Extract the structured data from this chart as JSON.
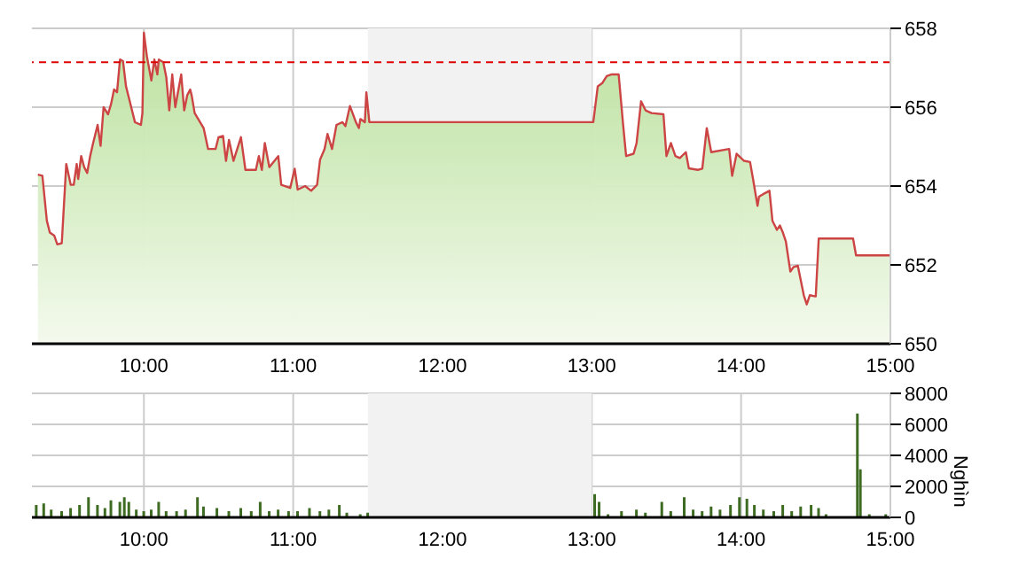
{
  "chart_data": [
    {
      "type": "area",
      "xlim": [
        9.25,
        15
      ],
      "xticks": [
        {
          "value": 10,
          "label": "10:00"
        },
        {
          "value": 11,
          "label": "11:00"
        },
        {
          "value": 12,
          "label": "12:00"
        },
        {
          "value": 13,
          "label": "13:00"
        },
        {
          "value": 14,
          "label": "14:00"
        },
        {
          "value": 15,
          "label": "15:00"
        }
      ],
      "ylim": [
        650,
        658
      ],
      "yticks": [
        650,
        652,
        654,
        656,
        658
      ],
      "grid": true,
      "marker": "none",
      "ref_lines": [
        {
          "axis": "y",
          "value": 657.14,
          "color": "#dd0000",
          "line_style": "dashed"
        }
      ],
      "bands": [
        {
          "axis": "x",
          "from": 11.5,
          "to": 13,
          "color": "#f2f2f2"
        }
      ],
      "series": [
        {
          "color": "#cc4444",
          "x": [
            9.29,
            9.32,
            9.35,
            9.37,
            9.4,
            9.42,
            9.45,
            9.48,
            9.51,
            9.53,
            9.55,
            9.56,
            9.58,
            9.6,
            9.62,
            9.64,
            9.66,
            9.69,
            9.71,
            9.73,
            9.76,
            9.78,
            9.8,
            9.82,
            9.84,
            9.86,
            9.88,
            9.9,
            9.94,
            9.98,
            9.99,
            10.0,
            10.02,
            10.05,
            10.07,
            10.09,
            10.1,
            10.13,
            10.15,
            10.17,
            10.19,
            10.21,
            10.25,
            10.27,
            10.29,
            10.31,
            10.32,
            10.34,
            10.4,
            10.43,
            10.48,
            10.5,
            10.53,
            10.55,
            10.57,
            10.6,
            10.65,
            10.68,
            10.75,
            10.77,
            10.79,
            10.81,
            10.84,
            10.9,
            10.92,
            10.98,
            11.01,
            11.03,
            11.08,
            11.12,
            11.16,
            11.18,
            11.21,
            11.23,
            11.26,
            11.29,
            11.33,
            11.35,
            11.38,
            11.42,
            11.44,
            11.45,
            11.48,
            11.49,
            11.51,
            13.01,
            13.04,
            13.07,
            13.1,
            13.13,
            13.18,
            13.21,
            13.23,
            13.28,
            13.3,
            13.33,
            13.36,
            13.4,
            13.48,
            13.5,
            13.53,
            13.56,
            13.59,
            13.63,
            13.65,
            13.71,
            13.74,
            13.77,
            13.8,
            13.92,
            13.94,
            13.97,
            14.02,
            14.06,
            14.08,
            14.11,
            14.12,
            14.15,
            14.19,
            14.21,
            14.24,
            14.26,
            14.28,
            14.3,
            14.33,
            14.35,
            14.38,
            14.42,
            14.44,
            14.46,
            14.5,
            14.52,
            14.75,
            14.77,
            15.0
          ],
          "values": [
            654.29,
            654.26,
            653.12,
            652.82,
            652.74,
            652.52,
            652.55,
            654.56,
            654.03,
            654.03,
            654.56,
            654.18,
            654.76,
            654.48,
            654.33,
            654.76,
            655.09,
            655.55,
            655.02,
            656.0,
            655.82,
            656.08,
            656.45,
            656.38,
            657.21,
            657.17,
            656.53,
            656.23,
            655.62,
            655.55,
            655.85,
            657.89,
            657.29,
            656.68,
            657.21,
            656.83,
            657.21,
            657.14,
            656.76,
            655.92,
            656.83,
            656.0,
            656.83,
            655.92,
            656.3,
            656.45,
            656.3,
            655.85,
            655.47,
            654.94,
            654.94,
            655.24,
            655.27,
            654.64,
            655.17,
            654.64,
            655.24,
            654.41,
            654.41,
            654.76,
            654.41,
            655.09,
            654.48,
            654.76,
            654.03,
            653.95,
            654.44,
            653.91,
            654.0,
            653.88,
            654.03,
            654.67,
            654.94,
            655.32,
            654.94,
            655.55,
            655.62,
            655.52,
            656.03,
            655.62,
            655.47,
            655.7,
            655.62,
            656.38,
            655.62,
            655.62,
            656.53,
            656.61,
            656.79,
            656.83,
            656.83,
            655.55,
            654.76,
            654.82,
            655.09,
            656.15,
            655.92,
            655.85,
            655.82,
            654.76,
            655.09,
            654.76,
            654.71,
            654.86,
            654.45,
            654.41,
            654.44,
            655.47,
            654.86,
            654.94,
            654.26,
            654.82,
            654.64,
            654.61,
            654.18,
            653.5,
            653.73,
            653.8,
            653.88,
            653.12,
            652.89,
            653.0,
            652.82,
            652.59,
            651.83,
            651.94,
            651.98,
            651.23,
            651.0,
            651.23,
            651.2,
            652.67,
            652.67,
            652.24,
            652.24
          ]
        }
      ]
    },
    {
      "type": "bar",
      "xlim": [
        9.25,
        15
      ],
      "xticks": [
        {
          "value": 10,
          "label": "10:00"
        },
        {
          "value": 11,
          "label": "11:00"
        },
        {
          "value": 12,
          "label": "12:00"
        },
        {
          "value": 13,
          "label": "13:00"
        },
        {
          "value": 14,
          "label": "14:00"
        },
        {
          "value": 15,
          "label": "15:00"
        }
      ],
      "ylim": [
        0,
        8000
      ],
      "yticks": [
        0,
        2000,
        4000,
        6000,
        8000
      ],
      "ylabel": "Nghìn",
      "grid": true,
      "bands": [
        {
          "axis": "x",
          "from": 11.5,
          "to": 13,
          "color": "#f2f2f2"
        }
      ],
      "series": [
        {
          "color": "#3d6b21",
          "x": [
            9.28,
            9.33,
            9.38,
            9.45,
            9.51,
            9.57,
            9.63,
            9.69,
            9.74,
            9.78,
            9.84,
            9.87,
            9.9,
            9.95,
            10.0,
            10.05,
            10.1,
            10.15,
            10.22,
            10.28,
            10.36,
            10.4,
            10.49,
            10.57,
            10.65,
            10.72,
            10.78,
            10.84,
            10.9,
            10.97,
            11.03,
            11.11,
            11.18,
            11.24,
            11.31,
            11.36,
            11.45,
            11.5,
            13.02,
            13.05,
            13.11,
            13.2,
            13.3,
            13.36,
            13.47,
            13.53,
            13.62,
            13.68,
            13.74,
            13.8,
            13.86,
            13.93,
            13.99,
            14.04,
            14.09,
            14.15,
            14.22,
            14.28,
            14.34,
            14.4,
            14.47,
            14.52,
            14.57,
            14.78,
            14.8,
            14.86,
            14.97
          ],
          "values": [
            800,
            900,
            500,
            400,
            600,
            800,
            1300,
            800,
            600,
            1100,
            1000,
            1300,
            1000,
            500,
            400,
            500,
            1000,
            400,
            400,
            500,
            1300,
            700,
            600,
            400,
            600,
            400,
            1000,
            400,
            500,
            400,
            400,
            600,
            400,
            500,
            800,
            300,
            200,
            300,
            1500,
            1000,
            200,
            400,
            500,
            300,
            1000,
            400,
            1300,
            500,
            400,
            700,
            500,
            800,
            1300,
            1200,
            800,
            500,
            400,
            800,
            400,
            700,
            800,
            600,
            200,
            6700,
            3100,
            200,
            200
          ]
        }
      ]
    }
  ]
}
